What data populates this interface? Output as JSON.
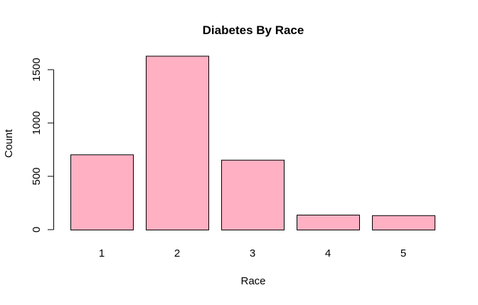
{
  "chart_data": {
    "type": "bar",
    "title": "Diabetes By Race",
    "xlabel": "Race",
    "ylabel": "Count",
    "categories": [
      "1",
      "2",
      "3",
      "4",
      "5"
    ],
    "values": [
      705,
      1630,
      655,
      140,
      135
    ],
    "ylim": [
      0,
      1700
    ],
    "yticks": [
      "0",
      "500",
      "1000",
      "1500"
    ],
    "bar_color": "#FFB0C3",
    "grid": false,
    "legend": "none"
  }
}
